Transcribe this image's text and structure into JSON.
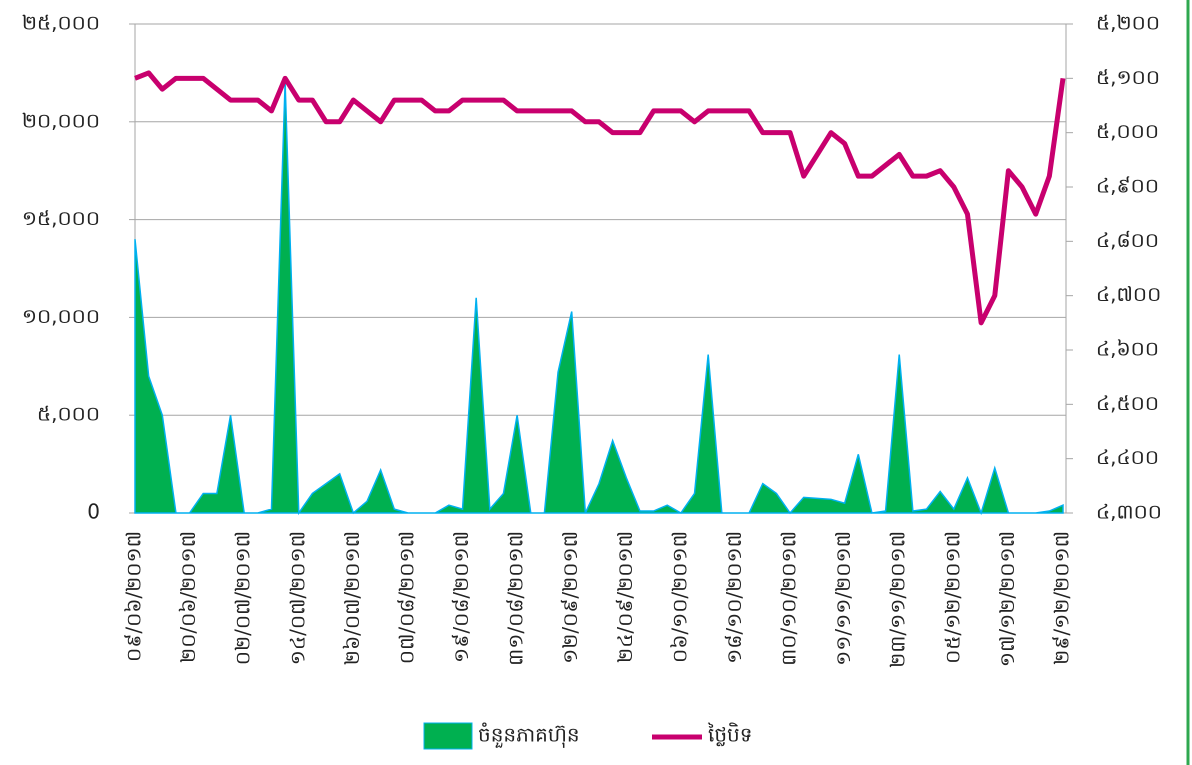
{
  "chart_data": {
    "type": "area-line",
    "categories": [
      "០៩/០៦/២០១៧",
      null,
      null,
      null,
      "២០/០៦/២០១៧",
      null,
      null,
      null,
      "០២/០៧/២០១៧",
      null,
      null,
      null,
      "១៤/០៧/២០១៧",
      null,
      null,
      null,
      "២៦/០៧/២០១៧",
      null,
      null,
      null,
      "០៧/០៨/២០១៧",
      null,
      null,
      null,
      "១៩/០៨/២០១៧",
      null,
      null,
      null,
      "៣១/០៨/២០១៧",
      null,
      null,
      null,
      "១២/០៩/២០១៧",
      null,
      null,
      null,
      "២៤/០៩/២០១៧",
      null,
      null,
      null,
      "០៦/១០/២០១៧",
      null,
      null,
      null,
      "១៨/១០/២០១៧",
      null,
      null,
      null,
      "៣០/១០/២០១៧",
      null,
      null,
      null,
      "១១/១១/២០១៧",
      null,
      null,
      null,
      "២៣/១១/២០១៧",
      null,
      null,
      null,
      "០៥/១២/២០១៧",
      null,
      null,
      null,
      "១៧/១២/២០១៧",
      null,
      null,
      null,
      "២៩/១២/២០១៧"
    ],
    "series": [
      {
        "name": "ចំនួនភាគហ៊ុន",
        "color": "#00b050",
        "stroke": "#00b0f0",
        "axis": "y",
        "values": [
          14000,
          7000,
          5000,
          0,
          0,
          1000,
          1000,
          5000,
          0,
          0,
          200,
          22000,
          0,
          1000,
          1500,
          2000,
          0,
          600,
          2200,
          200,
          0,
          0,
          0,
          400,
          200,
          11000,
          200,
          1000,
          5000,
          0,
          0,
          7200,
          10300,
          0,
          1500,
          3700,
          1800,
          100,
          100,
          400,
          0,
          1000,
          8100,
          0,
          0,
          0,
          1500,
          1000,
          0,
          800,
          750,
          700,
          500,
          3000,
          0,
          100,
          8100,
          100,
          200,
          1100,
          200,
          1800,
          0,
          2300,
          0,
          0,
          0,
          100,
          400
        ]
      },
      {
        "name": "ថ្លៃបិទ",
        "color": "#c8006e",
        "axis": "y2",
        "values": [
          5100,
          5110,
          5080,
          5100,
          5100,
          5100,
          5080,
          5060,
          5060,
          5060,
          5040,
          5100,
          5060,
          5060,
          5020,
          5020,
          5060,
          5040,
          5020,
          5060,
          5060,
          5060,
          5040,
          5040,
          5060,
          5060,
          5060,
          5060,
          5040,
          5040,
          5040,
          5040,
          5040,
          5020,
          5020,
          5000,
          5000,
          5000,
          5040,
          5040,
          5040,
          5020,
          5040,
          5040,
          5040,
          5040,
          5000,
          5000,
          5000,
          4920,
          4960,
          5000,
          4980,
          4920,
          4920,
          4940,
          4960,
          4920,
          4920,
          4930,
          4900,
          4850,
          4650,
          4700,
          4930,
          4900,
          4850,
          4920,
          5100
        ]
      }
    ],
    "ylim": [
      0,
      25000
    ],
    "yticks": [
      {
        "value": 0,
        "label": "0"
      },
      {
        "value": 5000,
        "label": "៥,០០០"
      },
      {
        "value": 10000,
        "label": "១០,០០០"
      },
      {
        "value": 15000,
        "label": "១៥,០០០"
      },
      {
        "value": 20000,
        "label": "២០,០០០"
      },
      {
        "value": 25000,
        "label": "២៥,០០០"
      }
    ],
    "y2lim": [
      4300,
      5200
    ],
    "y2ticks": [
      {
        "value": 4300,
        "label": "៤,៣០០"
      },
      {
        "value": 4400,
        "label": "៤,៤០០"
      },
      {
        "value": 4500,
        "label": "៤,៥០០"
      },
      {
        "value": 4600,
        "label": "៤,៦០០"
      },
      {
        "value": 4700,
        "label": "៤,៧០០"
      },
      {
        "value": 4800,
        "label": "៤,៨០០"
      },
      {
        "value": 4900,
        "label": "៤,៩០០"
      },
      {
        "value": 5000,
        "label": "៥,០០០"
      },
      {
        "value": 5100,
        "label": "៥,១០០"
      },
      {
        "value": 5200,
        "label": "៥,២០០"
      }
    ],
    "grid": true,
    "legend": "bottom"
  }
}
